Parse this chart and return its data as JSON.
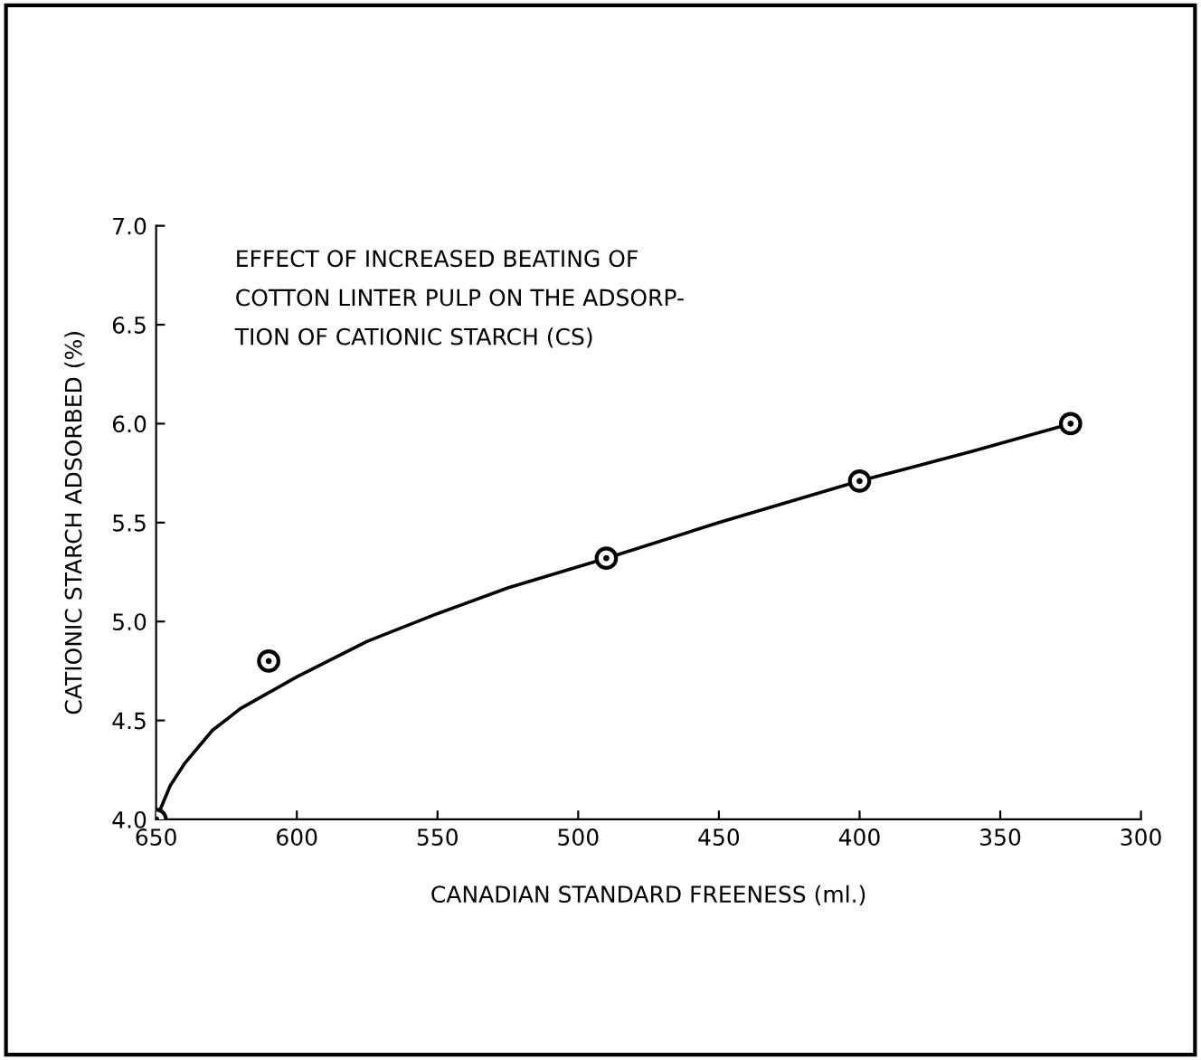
{
  "chart_data": {
    "type": "scatter",
    "title": "EFFECT OF INCREASED BEATING OF\nCOTTON LINTER PULP ON THE ADSORP-\nTION OF CATIONIC STARCH (CS)",
    "xlabel": "CANADIAN STANDARD FREENESS (ml.)",
    "ylabel": "CATIONIC STARCH ADSORBED (%)",
    "series": [
      {
        "color": "#000000",
        "marker": "circle",
        "x": [
          650,
          610,
          490,
          400,
          325
        ],
        "values": [
          4.0,
          4.8,
          5.32,
          5.71,
          6.0
        ]
      },
      {
        "type": "line",
        "color": "#000000",
        "marker": "none",
        "line_style": "solid",
        "x": [
          650,
          645,
          640,
          630,
          620,
          610,
          600,
          575,
          550,
          525,
          490,
          450,
          400,
          360,
          325
        ],
        "values": [
          4.0,
          4.17,
          4.28,
          4.45,
          4.56,
          4.64,
          4.72,
          4.9,
          5.04,
          5.17,
          5.32,
          5.5,
          5.71,
          5.86,
          6.0
        ]
      }
    ],
    "xlim": [
      650,
      300
    ],
    "ylim": [
      4.0,
      7.0
    ],
    "xticks": [
      650,
      600,
      550,
      500,
      450,
      400,
      350,
      300
    ],
    "yticks": [
      {
        "value": 4.0,
        "label": "4.0"
      },
      {
        "value": 4.5,
        "label": "4.5"
      },
      {
        "value": 5.0,
        "label": "5.0"
      },
      {
        "value": 5.5,
        "label": "5.5"
      },
      {
        "value": 6.0,
        "label": "6.0"
      },
      {
        "value": 6.5,
        "label": "6.5"
      },
      {
        "value": 7.0,
        "label": "7.0"
      }
    ],
    "grid": false,
    "legend": false
  }
}
